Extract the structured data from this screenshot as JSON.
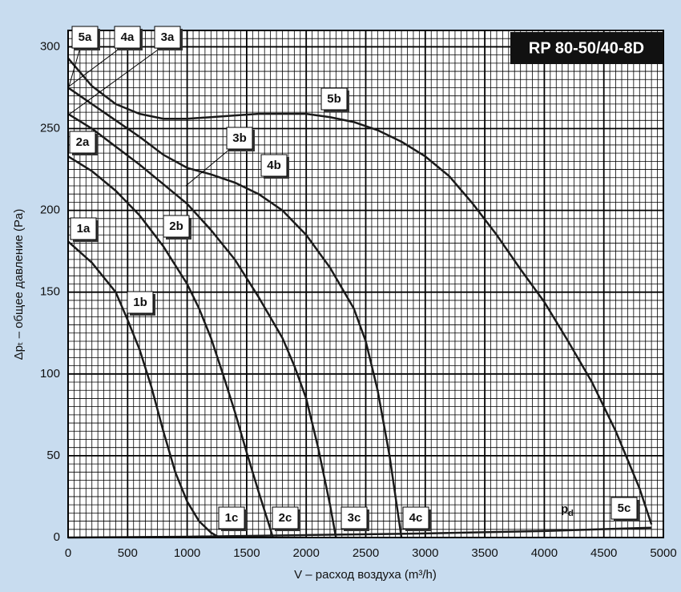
{
  "chart_data": {
    "type": "line",
    "title": "RP 80-50/40-8D",
    "x_label": "V – расход воздуха (m³/h)",
    "y_label": "Δpₜ – общее давление (Pa)",
    "xlim": [
      0,
      5000
    ],
    "ylim": [
      0,
      310
    ],
    "xticks": [
      0,
      500,
      1000,
      1500,
      2000,
      2500,
      3000,
      3500,
      4000,
      4500,
      5000
    ],
    "yticks": [
      0,
      50,
      100,
      150,
      200,
      250,
      300
    ],
    "grid": true,
    "series": [
      {
        "name": "1",
        "color": "#1a1a1a",
        "x": [
          0,
          200,
          400,
          500,
          600,
          700,
          800,
          900,
          1000,
          1100,
          1200,
          1270
        ],
        "values": [
          181,
          168,
          150,
          133,
          115,
          92,
          65,
          40,
          22,
          10,
          3,
          0
        ]
      },
      {
        "name": "2",
        "color": "#1a1a1a",
        "x": [
          0,
          200,
          400,
          600,
          800,
          1000,
          1100,
          1200,
          1300,
          1400,
          1500,
          1600,
          1700,
          1720
        ],
        "values": [
          233,
          224,
          212,
          197,
          178,
          155,
          140,
          122,
          100,
          77,
          52,
          28,
          5,
          0
        ]
      },
      {
        "name": "3",
        "color": "#1a1a1a",
        "x": [
          0,
          200,
          400,
          600,
          800,
          1000,
          1200,
          1400,
          1600,
          1800,
          1900,
          2000,
          2100,
          2200,
          2250
        ],
        "values": [
          259,
          250,
          239,
          228,
          216,
          204,
          188,
          170,
          147,
          122,
          105,
          85,
          55,
          20,
          0
        ]
      },
      {
        "name": "4",
        "color": "#1a1a1a",
        "x": [
          0,
          200,
          400,
          600,
          800,
          1000,
          1200,
          1400,
          1600,
          1800,
          2000,
          2200,
          2400,
          2500,
          2600,
          2700,
          2800
        ],
        "values": [
          275,
          265,
          255,
          245,
          234,
          226,
          222,
          217,
          210,
          200,
          185,
          165,
          140,
          120,
          90,
          50,
          0
        ]
      },
      {
        "name": "5",
        "color": "#1a1a1a",
        "x": [
          0,
          200,
          400,
          600,
          800,
          1000,
          1200,
          1400,
          1600,
          1800,
          2000,
          2200,
          2400,
          2600,
          2800,
          3000,
          3200,
          3400,
          3600,
          3800,
          4000,
          4200,
          4400,
          4600,
          4800,
          4900
        ],
        "values": [
          293,
          276,
          265,
          259,
          256,
          256,
          257,
          258,
          259,
          259,
          259,
          257,
          254,
          249,
          242,
          233,
          221,
          204,
          185,
          164,
          144,
          120,
          95,
          65,
          30,
          8
        ]
      },
      {
        "name": "pd",
        "color": "#1a1a1a",
        "x": [
          0,
          1000,
          2000,
          3000,
          4000,
          4900
        ],
        "values": [
          0,
          0.5,
          1.5,
          2.5,
          4,
          6
        ]
      }
    ],
    "annotations": [
      "5a",
      "4a",
      "3a",
      "2a",
      "1a",
      "1b",
      "2b",
      "3b",
      "4b",
      "5b",
      "1c",
      "2c",
      "3c",
      "4c",
      "5c"
    ],
    "pd_label": {
      "text": "p",
      "sub": "d"
    }
  }
}
